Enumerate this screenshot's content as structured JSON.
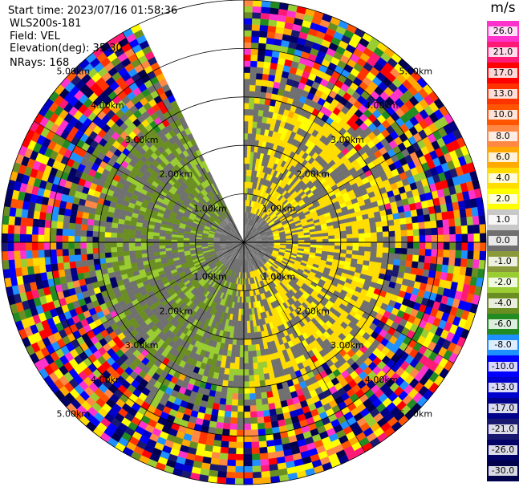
{
  "info": {
    "start_time": "Start time: 2023/07/16 01:58:36",
    "instrument": "WLS200s-181",
    "field": "Field: VEL",
    "elevation": "Elevation(deg): 35.30",
    "nrays": "NRays: 168"
  },
  "chart_data": {
    "type": "heatmap",
    "projection": "polar",
    "field": "VEL",
    "range_rings_km": [
      1.0,
      2.0,
      3.0,
      4.0,
      5.0
    ],
    "ring_labels": [
      "1.00km",
      "2.00km",
      "3.00km",
      "4.00km",
      "5.00km"
    ],
    "max_range_km": 5.0,
    "missing_sector_deg": [
      -25,
      0
    ],
    "colorbar": {
      "unit": "m/s",
      "ticks": [
        "26.0",
        "21.0",
        "17.0",
        "13.0",
        "10.0",
        "8.0",
        "6.0",
        "4.0",
        "2.0",
        "1.0",
        "0.0",
        "-1.0",
        "-2.0",
        "-4.0",
        "-6.0",
        "-8.0",
        "-10.0",
        "-13.0",
        "-17.0",
        "-21.0",
        "-26.0",
        "-30.0"
      ],
      "colors": [
        "#ff33cc",
        "#ff1a75",
        "#ff0000",
        "#ff3300",
        "#ff5500",
        "#ff8844",
        "#ffaa00",
        "#ffdd00",
        "#ffff00",
        "#c8c8c8",
        "#707070",
        "#8a9a3a",
        "#9acd32",
        "#6b8e23",
        "#228b22",
        "#1e90ff",
        "#0000ff",
        "#0000cd",
        "#00008b",
        "#191970",
        "#000066",
        "#00004d"
      ]
    },
    "regions": {
      "near_noise_floor": "gray",
      "inbound_sectors": "green",
      "outbound_sectors": "yellow",
      "far_range": "noisy multicolor"
    }
  }
}
